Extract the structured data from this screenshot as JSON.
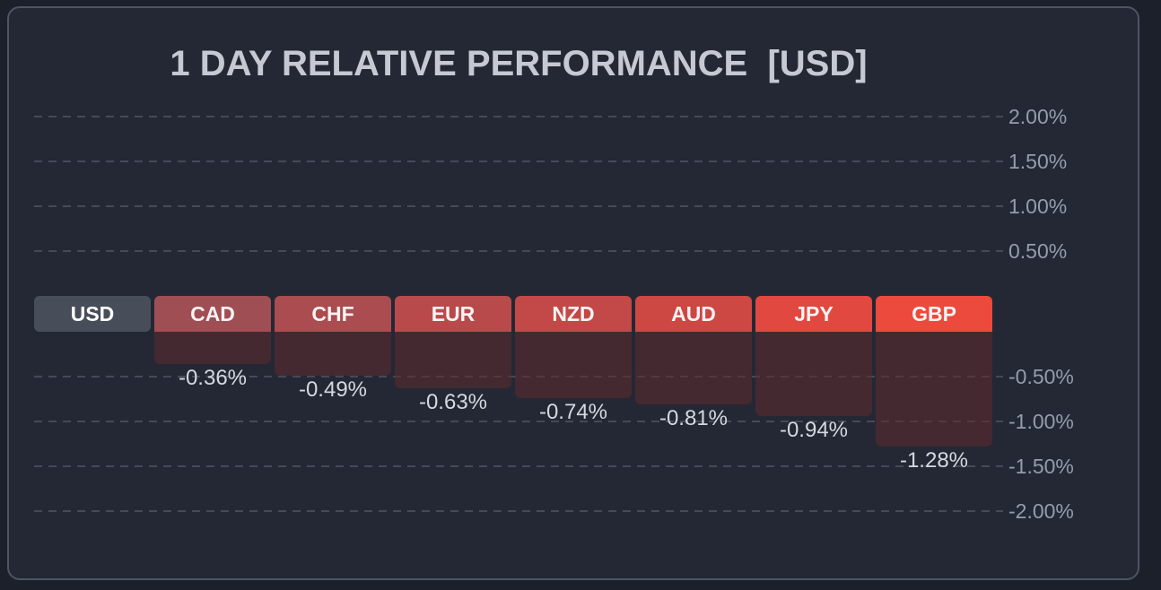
{
  "title": "1 DAY RELATIVE PERFORMANCE  [USD]",
  "colors": {
    "page_bg": "#1c202a",
    "panel_bg": "#232834",
    "panel_border": "#4d5464",
    "gridline": "#444a58",
    "axis_text": "#959cab",
    "title_text": "#c6c9d2",
    "value_text": "#d5d8e0",
    "bar_fill": "rgba(96,41,45,0.55)",
    "base_header_bg": "#484d5a"
  },
  "chart_data": {
    "type": "bar",
    "title": "1 DAY RELATIVE PERFORMANCE  [USD]",
    "base_currency": "USD",
    "categories": [
      "USD",
      "CAD",
      "CHF",
      "EUR",
      "NZD",
      "AUD",
      "JPY",
      "GBP"
    ],
    "values": [
      0,
      -0.36,
      -0.49,
      -0.63,
      -0.74,
      -0.81,
      -0.94,
      -1.28
    ],
    "value_labels": [
      "",
      "-0.36%",
      "-0.49%",
      "-0.63%",
      "-0.74%",
      "-0.81%",
      "-0.94%",
      "-1.28%"
    ],
    "header_colors": [
      "#484d5a",
      "#9f4e54",
      "#aa4c50",
      "#b84a4b",
      "#c24947",
      "#cd4743",
      "#e1483f",
      "#eb4a3d"
    ],
    "y_ticks": [
      {
        "pct": 2.0,
        "label": "2.00%"
      },
      {
        "pct": 1.5,
        "label": "1.50%"
      },
      {
        "pct": 1.0,
        "label": "1.00%"
      },
      {
        "pct": 0.5,
        "label": "0.50%"
      },
      {
        "pct": -0.5,
        "label": "-0.50%"
      },
      {
        "pct": -1.0,
        "label": "-1.00%"
      },
      {
        "pct": -1.5,
        "label": "-1.50%"
      },
      {
        "pct": -2.0,
        "label": "-2.00%"
      }
    ],
    "ylim": [
      -2.25,
      2.25
    ],
    "grid": "dashed-horizontal",
    "axis_side": "right",
    "legend": "none"
  }
}
